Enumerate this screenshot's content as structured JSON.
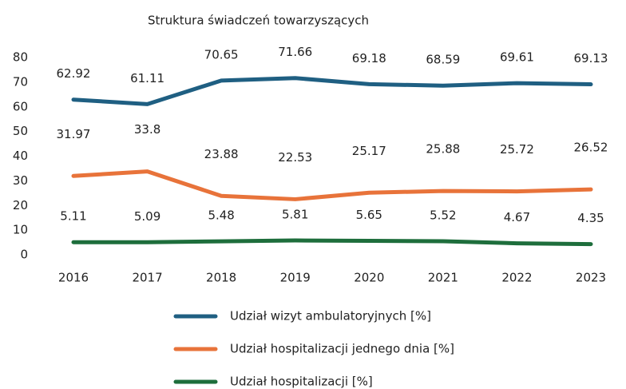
{
  "chart_data": {
    "type": "line",
    "title": "Struktura świadczeń towarzyszących",
    "categories": [
      "2016",
      "2017",
      "2018",
      "2019",
      "2020",
      "2021",
      "2022",
      "2023"
    ],
    "series": [
      {
        "name": "Udział wizyt ambulatoryjnych [%]",
        "color": "#1f5f82",
        "values": [
          62.92,
          61.11,
          70.65,
          71.66,
          69.18,
          68.59,
          69.61,
          69.13
        ]
      },
      {
        "name": "Udział hospitalizacji jednego dnia [%]",
        "color": "#e8733a",
        "values": [
          31.97,
          33.8,
          23.88,
          22.53,
          25.17,
          25.88,
          25.72,
          26.52
        ]
      },
      {
        "name": "Udział hospitalizacji [%]",
        "color": "#1e6e3c",
        "values": [
          5.11,
          5.09,
          5.48,
          5.81,
          5.65,
          5.52,
          4.67,
          4.35
        ]
      }
    ],
    "ylim": [
      0,
      80
    ],
    "yticks": [
      0,
      10,
      20,
      30,
      40,
      50,
      60,
      70,
      80
    ],
    "grid": false,
    "legend": "bottom"
  }
}
